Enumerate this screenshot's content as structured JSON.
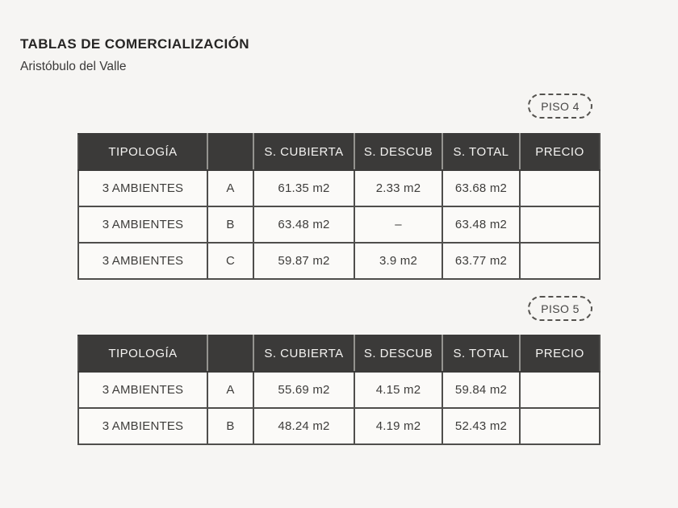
{
  "page": {
    "title": "TABLAS DE COMERCIALIZACIÓN",
    "subtitle": "Aristóbulo del Valle"
  },
  "colors": {
    "background": "#f6f5f3",
    "table_header_bg": "#3b3a39",
    "table_header_text": "#f4f3f1",
    "table_border": "#4f4e4c",
    "cell_bg": "#fbfaf8",
    "cell_text": "#3e3d3b"
  },
  "columns": [
    "TIPOLOGÍA",
    "",
    "S. CUBIERTA",
    "S. DESCUB",
    "S. TOTAL",
    "PRECIO"
  ],
  "sections": [
    {
      "badge": "PISO 4",
      "rows": [
        [
          "3 AMBIENTES",
          "A",
          "61.35 m2",
          "2.33 m2",
          "63.68 m2",
          ""
        ],
        [
          "3 AMBIENTES",
          "B",
          "63.48 m2",
          "–",
          "63.48 m2",
          ""
        ],
        [
          "3 AMBIENTES",
          "C",
          "59.87 m2",
          "3.9 m2",
          "63.77 m2",
          ""
        ]
      ]
    },
    {
      "badge": "PISO 5",
      "rows": [
        [
          "3 AMBIENTES",
          "A",
          "55.69 m2",
          "4.15 m2",
          "59.84 m2",
          ""
        ],
        [
          "3 AMBIENTES",
          "B",
          "48.24 m2",
          "4.19 m2",
          "52.43 m2",
          ""
        ]
      ]
    }
  ]
}
